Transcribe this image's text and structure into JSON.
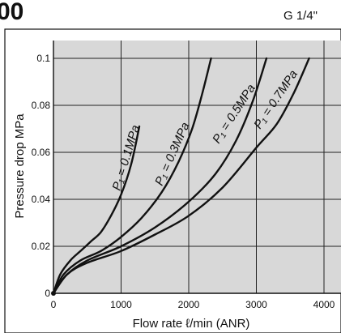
{
  "header": {
    "title_fragment": "00",
    "port_size": "G 1/4\""
  },
  "chart_data": {
    "type": "line",
    "xlabel": "Flow rate ℓ/min (ANR)",
    "ylabel": "Pressure drop MPa",
    "xlim": [
      0,
      4200
    ],
    "ylim": [
      0,
      0.1
    ],
    "xticks": [
      "0",
      "1000",
      "2000",
      "3000",
      "4000"
    ],
    "yticks": [
      "0",
      "0.02",
      "0.04",
      "0.06",
      "0.08",
      "0.1"
    ],
    "grid": true,
    "series": [
      {
        "name": "P₁ = 0.1MPa",
        "x": [
          0,
          100,
          250,
          400,
          550,
          700,
          850,
          1000,
          1150,
          1270
        ],
        "y": [
          0,
          0.008,
          0.014,
          0.018,
          0.022,
          0.026,
          0.033,
          0.042,
          0.055,
          0.071
        ]
      },
      {
        "name": "P₁ = 0.3MPa",
        "x": [
          0,
          150,
          400,
          700,
          1000,
          1300,
          1600,
          1850,
          2050,
          2200,
          2330
        ],
        "y": [
          0,
          0.008,
          0.014,
          0.018,
          0.024,
          0.032,
          0.043,
          0.056,
          0.07,
          0.085,
          0.1
        ]
      },
      {
        "name": "P₁ = 0.5MPa",
        "x": [
          0,
          200,
          500,
          1000,
          1500,
          2000,
          2400,
          2700,
          2950,
          3150
        ],
        "y": [
          0,
          0.008,
          0.014,
          0.02,
          0.028,
          0.039,
          0.051,
          0.065,
          0.082,
          0.1
        ]
      },
      {
        "name": "P₁ = 0.7MPa",
        "x": [
          0,
          200,
          500,
          1000,
          1500,
          2000,
          2500,
          3000,
          3300,
          3550,
          3780
        ],
        "y": [
          0,
          0.008,
          0.013,
          0.018,
          0.025,
          0.033,
          0.045,
          0.062,
          0.072,
          0.085,
          0.1
        ]
      }
    ]
  }
}
